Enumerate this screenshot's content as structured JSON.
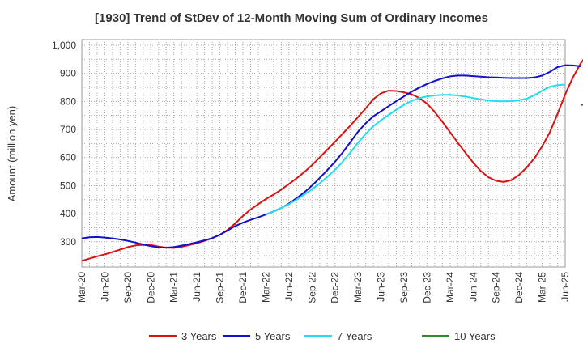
{
  "chart_data": {
    "type": "line",
    "title": "[1930]  Trend of StDev of 12-Month Moving Sum of Ordinary Incomes",
    "xlabel": "",
    "ylabel": "Amount (million yen)",
    "ylim": [
      210,
      1020
    ],
    "yticks": [
      300,
      400,
      500,
      600,
      700,
      800,
      900,
      1000
    ],
    "ytick_labels": [
      "300",
      "400",
      "500",
      "600",
      "700",
      "800",
      "900",
      "1,000"
    ],
    "x_start": "Mar-20",
    "x_tick_labels": [
      "Mar-20",
      "Jun-20",
      "Sep-20",
      "Dec-20",
      "Mar-21",
      "Jun-21",
      "Sep-21",
      "Dec-21",
      "Mar-22",
      "Jun-22",
      "Sep-22",
      "Dec-22",
      "Mar-23",
      "Jun-23",
      "Sep-23",
      "Dec-23",
      "Mar-24",
      "Jun-24",
      "Sep-24",
      "Dec-24",
      "Mar-25",
      "Jun-25"
    ],
    "grid": true,
    "legend_position": "bottom",
    "series": [
      {
        "name": "3 Years",
        "color": "#dd1111",
        "start_index": 0,
        "values": [
          232,
          240,
          248,
          255,
          263,
          272,
          281,
          287,
          289,
          288,
          283,
          279,
          278,
          282,
          288,
          295,
          303,
          313,
          325,
          342,
          365,
          392,
          415,
          434,
          452,
          468,
          486,
          506,
          526,
          548,
          573,
          600,
          628,
          656,
          685,
          714,
          744,
          775,
          808,
          829,
          838,
          837,
          832,
          825,
          812,
          792,
          762,
          727,
          690,
          653,
          617,
          582,
          552,
          530,
          517,
          513,
          520,
          538,
          565,
          598,
          640,
          690,
          755,
          825,
          885,
          935,
          972,
          993
        ]
      },
      {
        "name": "5 Years",
        "color": "#1111cc",
        "start_index": 0,
        "values": [
          312,
          316,
          317,
          315,
          312,
          308,
          303,
          297,
          290,
          284,
          280,
          279,
          281,
          286,
          292,
          298,
          305,
          313,
          325,
          340,
          356,
          368,
          378,
          387,
          397,
          408,
          420,
          436,
          455,
          476,
          500,
          527,
          555,
          585,
          618,
          655,
          692,
          722,
          747,
          765,
          783,
          801,
          818,
          835,
          849,
          862,
          873,
          882,
          889,
          892,
          892,
          890,
          888,
          886,
          885,
          884,
          883,
          883,
          883,
          885,
          892,
          905,
          922,
          929,
          928,
          925
        ]
      },
      {
        "name": "7 Years",
        "color": "#22ddee",
        "start_index": 24,
        "values": [
          397,
          408,
          420,
          434,
          450,
          468,
          487,
          508,
          531,
          556,
          585,
          618,
          653,
          684,
          712,
          733,
          752,
          771,
          788,
          802,
          812,
          818,
          821,
          823,
          823,
          821,
          817,
          812,
          807,
          803,
          801,
          800,
          801,
          804,
          810,
          822,
          838,
          852,
          858,
          860
        ]
      },
      {
        "name": "10 Years",
        "color": "#338833",
        "start_index": 65,
        "values": [
          787,
          789
        ]
      }
    ]
  }
}
